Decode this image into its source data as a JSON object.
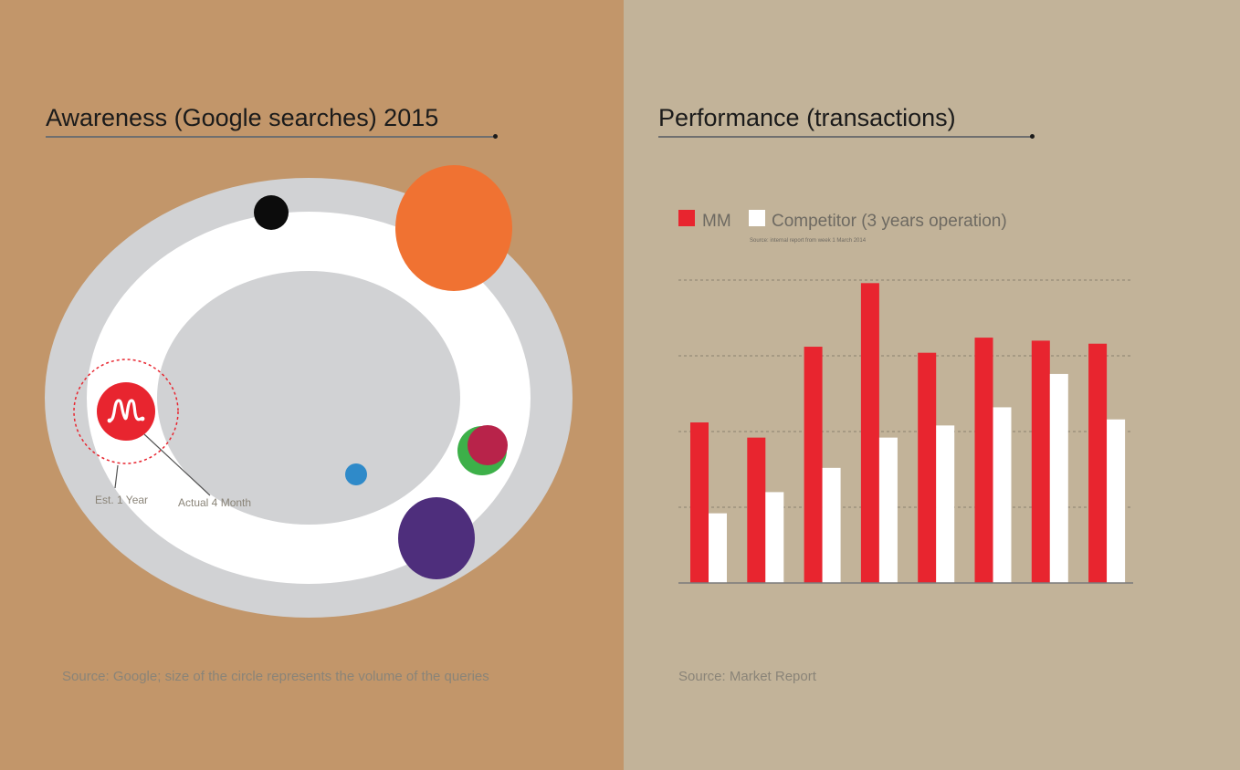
{
  "colors": {
    "left_bg": "#c2966a",
    "right_bg": "#c2b399",
    "mm_red": "#e8252f",
    "competitor_white": "#ffffff",
    "ring_gray": "#d1d2d4"
  },
  "left": {
    "title": "Awareness (Google searches) 2015",
    "source": "Source: Google; size of the circle represents the volume of the queries",
    "annotations": {
      "est": "Est. 1 Year",
      "actual": "Actual 4 Month"
    },
    "logo_icon": "mm-logo-icon"
  },
  "right": {
    "title": "Performance (transactions)",
    "source": "Source: Market Report"
  },
  "chart_data": {
    "type": "bar",
    "legend_note": "Source: internal report from week 1 March 2014",
    "categories": [
      "",
      "",
      "",
      "",
      "",
      "",
      "",
      ""
    ],
    "ylim": [
      0,
      100
    ],
    "grid": true,
    "legend_position": "top-left",
    "series": [
      {
        "name": "MM",
        "color": "#e8252f",
        "values": [
          53,
          48,
          78,
          99,
          76,
          81,
          80,
          79
        ]
      },
      {
        "name": "Competitor (3 years operation)",
        "color": "#ffffff",
        "values": [
          23,
          30,
          38,
          48,
          52,
          58,
          69,
          54
        ]
      }
    ]
  }
}
